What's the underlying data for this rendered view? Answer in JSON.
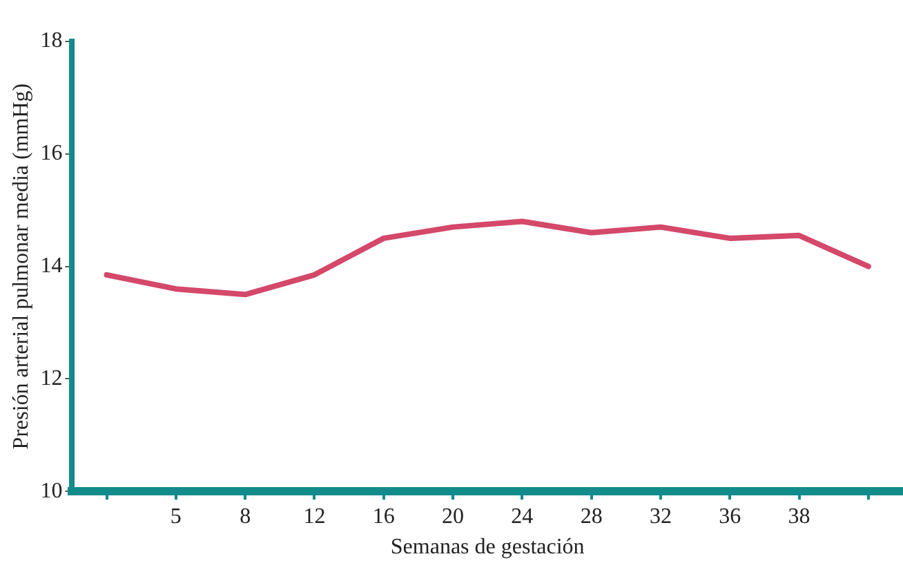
{
  "chart_data": {
    "type": "line",
    "xlabel": "Semanas de gestación",
    "ylabel": "Presión arterial pulmonar media (mmHg)",
    "categories": [
      null,
      "5",
      "8",
      "12",
      "16",
      "20",
      "24",
      "28",
      "32",
      "36",
      "38",
      null
    ],
    "series": [
      {
        "color": "#d4486a",
        "values": [
          13.85,
          13.6,
          13.5,
          13.85,
          14.5,
          14.7,
          14.8,
          14.6,
          14.7,
          14.5,
          14.55,
          14.0
        ]
      }
    ],
    "ylim": [
      10,
      18
    ],
    "yticks": [
      10,
      12,
      14,
      16,
      18
    ],
    "grid": false,
    "legend": false,
    "marker": "none",
    "line_style": "solid"
  }
}
